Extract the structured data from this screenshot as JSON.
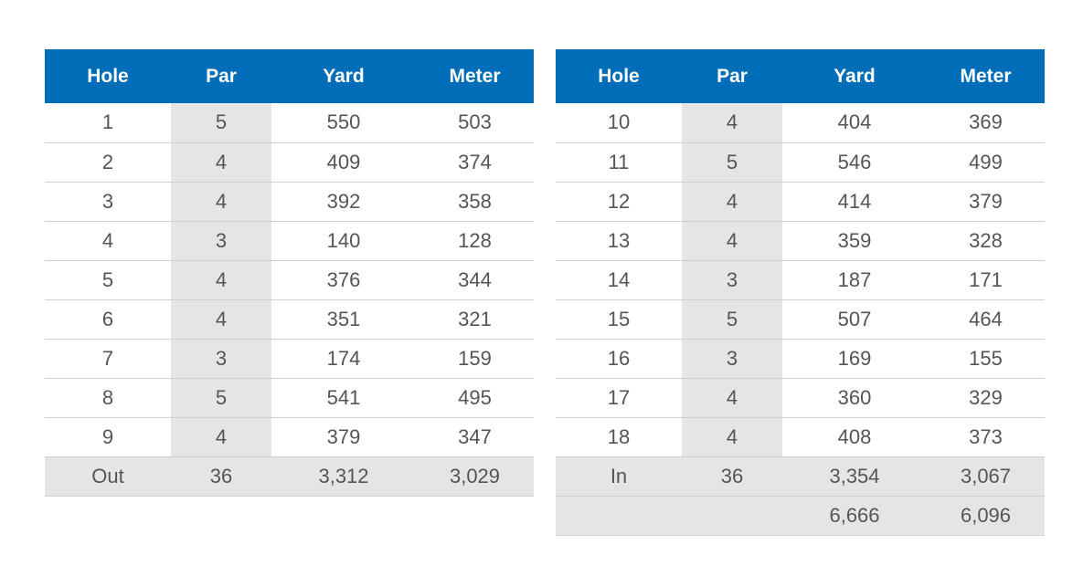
{
  "headers": [
    "Hole",
    "Par",
    "Yard",
    "Meter"
  ],
  "front_nine": {
    "rows": [
      [
        "1",
        "5",
        "550",
        "503"
      ],
      [
        "2",
        "4",
        "409",
        "374"
      ],
      [
        "3",
        "4",
        "392",
        "358"
      ],
      [
        "4",
        "3",
        "140",
        "128"
      ],
      [
        "5",
        "4",
        "376",
        "344"
      ],
      [
        "6",
        "4",
        "351",
        "321"
      ],
      [
        "7",
        "3",
        "174",
        "159"
      ],
      [
        "8",
        "5",
        "541",
        "495"
      ],
      [
        "9",
        "4",
        "379",
        "347"
      ]
    ],
    "total": [
      "Out",
      "36",
      "3,312",
      "3,029"
    ]
  },
  "back_nine": {
    "rows": [
      [
        "10",
        "4",
        "404",
        "369"
      ],
      [
        "11",
        "5",
        "546",
        "499"
      ],
      [
        "12",
        "4",
        "414",
        "379"
      ],
      [
        "13",
        "4",
        "359",
        "328"
      ],
      [
        "14",
        "3",
        "187",
        "171"
      ],
      [
        "15",
        "5",
        "507",
        "464"
      ],
      [
        "16",
        "3",
        "169",
        "155"
      ],
      [
        "17",
        "4",
        "360",
        "329"
      ],
      [
        "18",
        "4",
        "408",
        "373"
      ]
    ],
    "total": [
      "In",
      "36",
      "3,354",
      "3,067"
    ],
    "grand_total": [
      "",
      "",
      "6,666",
      "6,096"
    ]
  },
  "colors": {
    "header_bg": "#006db8",
    "header_text": "#ffffff",
    "shaded_cell": "#e5e5e7",
    "row_divider": "#cfcfd1",
    "body_text": "#555555"
  }
}
